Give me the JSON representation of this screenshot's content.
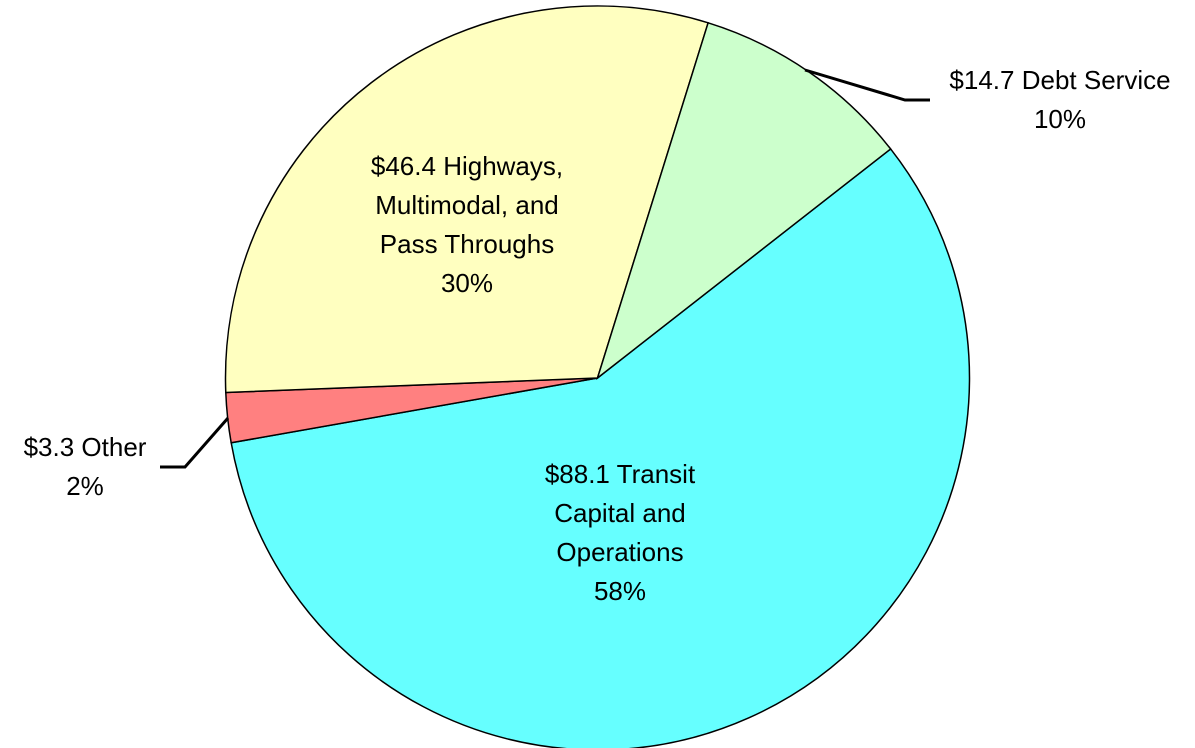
{
  "chart_data": {
    "type": "pie",
    "categories": [
      "Transit Capital and Operations",
      "Other",
      "Highways, Multimodal, and Pass Throughs",
      "Debt Service"
    ],
    "values": [
      88.1,
      3.3,
      46.4,
      14.7
    ],
    "value_labels": [
      "$88.1",
      "$3.3",
      "$46.4",
      "$14.7"
    ],
    "percent_labels": [
      "58%",
      "2%",
      "30%",
      "10%"
    ],
    "colors": [
      "#66ffff",
      "#ff8080",
      "#ffffc0",
      "#ccffcc"
    ]
  }
}
